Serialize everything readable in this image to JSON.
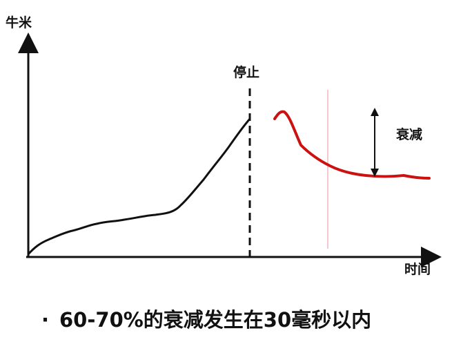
{
  "axes": {
    "y_label": "牛米",
    "x_label": "时间"
  },
  "annotations": {
    "stop": "停止",
    "decay": "衰减"
  },
  "note": {
    "bullet": "·",
    "text": "60-70%的衰减发生在30毫秒以内"
  },
  "colors": {
    "axis": "#111111",
    "buildup_curve": "#111111",
    "decay_curve": "#cc1111",
    "marker_line": "#f2b7bd"
  }
}
